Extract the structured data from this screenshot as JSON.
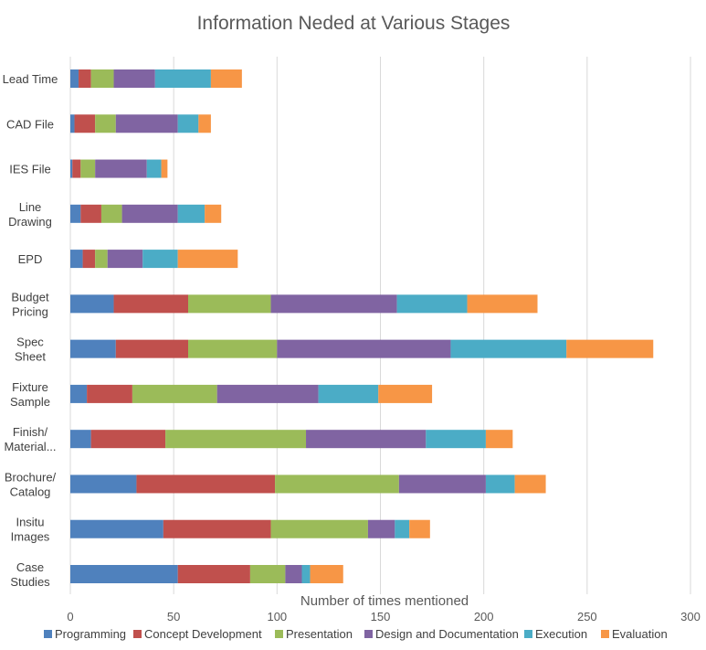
{
  "chart_data": {
    "type": "bar",
    "orientation": "horizontal",
    "stacked": true,
    "title": "Information Neded at Various Stages",
    "xlabel": "Number of times mentioned",
    "ylabel": "",
    "xlim": [
      0,
      300
    ],
    "xticks": [
      0,
      50,
      100,
      150,
      200,
      250,
      300
    ],
    "grid": true,
    "legend_position": "bottom",
    "categories": [
      [
        "Lead Time"
      ],
      [
        "CAD File"
      ],
      [
        "IES File"
      ],
      [
        "Line",
        "Drawing"
      ],
      [
        "EPD"
      ],
      [
        "Budget",
        "Pricing"
      ],
      [
        "Spec",
        "Sheet"
      ],
      [
        "Fixture",
        "Sample"
      ],
      [
        "Finish/",
        "Material..."
      ],
      [
        "Brochure/",
        "Catalog"
      ],
      [
        "Insitu",
        "Images"
      ],
      [
        "Case",
        "Studies"
      ]
    ],
    "series": [
      {
        "name": "Programming",
        "color": "#4f81bd",
        "values": [
          4,
          2,
          1,
          5,
          6,
          21,
          22,
          8,
          10,
          32,
          45,
          52
        ]
      },
      {
        "name": "Concept Development",
        "color": "#c0504d",
        "values": [
          6,
          10,
          4,
          10,
          6,
          36,
          35,
          22,
          36,
          67,
          52,
          35
        ]
      },
      {
        "name": "Presentation",
        "color": "#9bbb59",
        "values": [
          11,
          10,
          7,
          10,
          6,
          40,
          43,
          41,
          68,
          60,
          47,
          17
        ]
      },
      {
        "name": "Design and Documentation",
        "color": "#8064a2",
        "values": [
          20,
          30,
          25,
          27,
          17,
          61,
          84,
          49,
          58,
          42,
          13,
          8
        ]
      },
      {
        "name": "Execution",
        "color": "#4bacc6",
        "values": [
          27,
          10,
          7,
          13,
          17,
          34,
          56,
          29,
          29,
          14,
          7,
          4
        ]
      },
      {
        "name": "Evaluation",
        "color": "#f79646",
        "values": [
          15,
          6,
          3,
          8,
          29,
          34,
          42,
          26,
          13,
          15,
          10,
          16
        ]
      }
    ]
  }
}
